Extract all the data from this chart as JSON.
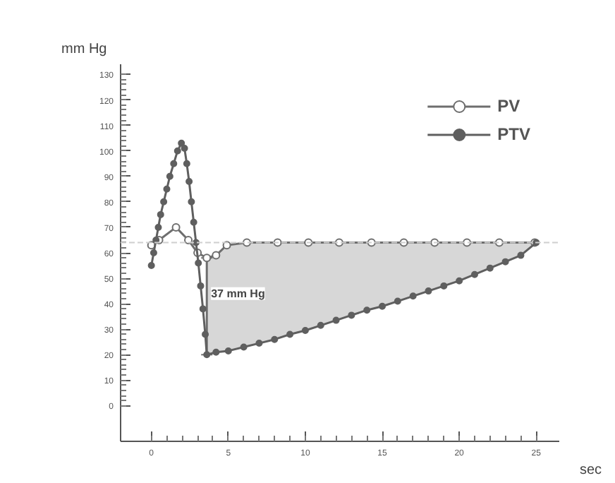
{
  "chart_data": {
    "type": "line",
    "xlabel": "sec",
    "ylabel": "mm Hg",
    "xlim": [
      -2,
      26.5
    ],
    "ylim": [
      -14,
      134
    ],
    "xticks": [
      0,
      5,
      10,
      15,
      20,
      25
    ],
    "yticks": [
      0,
      10,
      20,
      30,
      40,
      50,
      60,
      70,
      80,
      90,
      100,
      110,
      120,
      130
    ],
    "grid": false,
    "legend": "top right",
    "series": [
      {
        "name": "PV",
        "color": "#6e6e6e",
        "marker": "circle",
        "x": [
          0,
          0.5,
          1.6,
          2.4,
          3,
          3.6,
          4.2,
          4.9,
          6.2,
          8.2,
          10.2,
          12.2,
          14.3,
          16.4,
          18.4,
          20.5,
          22.6,
          24.9
        ],
        "values": [
          63,
          65,
          70,
          65,
          60,
          58,
          59,
          63,
          64,
          64,
          64,
          64,
          64,
          64,
          64,
          64,
          64,
          64
        ],
        "errors": [
          null,
          null,
          null,
          null,
          null,
          [
            20,
            58
          ],
          null,
          null,
          null,
          null,
          null,
          null,
          null,
          null,
          null,
          null,
          null,
          null
        ]
      },
      {
        "name": "PTV",
        "color": "#5f5f5f",
        "marker": "circle",
        "x": [
          0,
          0.15,
          0.3,
          0.45,
          0.6,
          0.8,
          1,
          1.2,
          1.45,
          1.7,
          1.95,
          2.15,
          2.3,
          2.45,
          2.6,
          2.75,
          2.9,
          3.05,
          3.2,
          3.35,
          3.5,
          3.6,
          4.2,
          5,
          6,
          7,
          8,
          9,
          10,
          11,
          12,
          13,
          14,
          15,
          16,
          17,
          18,
          19,
          20,
          21,
          22,
          23,
          24,
          25
        ],
        "values": [
          55,
          60,
          65,
          70,
          75,
          80,
          85,
          90,
          95,
          100,
          103,
          101,
          95,
          88,
          80,
          72,
          64,
          56,
          47,
          38,
          28,
          20,
          21,
          21.5,
          23,
          24.5,
          26,
          28,
          29.5,
          31.5,
          33.5,
          35.5,
          37.5,
          39,
          41,
          43,
          45,
          47,
          49,
          51.5,
          54,
          56.5,
          59,
          64
        ],
        "lower": [
          null,
          null,
          null,
          null,
          null,
          null,
          null,
          null,
          null,
          null,
          null,
          null,
          null,
          null,
          null,
          null,
          null,
          null,
          null,
          null,
          null,
          20,
          21,
          21.5,
          23,
          24.5,
          26,
          28,
          29.5,
          31.5,
          33.5,
          35.5,
          37.5,
          39,
          41,
          43,
          45,
          47,
          49,
          51.5,
          54,
          56.5,
          59,
          64
        ],
        "upper": [
          null,
          null,
          null,
          null,
          null,
          null,
          null,
          null,
          null,
          null,
          null,
          null,
          null,
          null,
          null,
          null,
          null,
          null,
          null,
          null,
          null,
          58,
          59,
          63,
          64,
          64,
          64,
          64,
          64,
          64,
          64,
          64,
          64,
          64,
          64,
          64,
          64,
          64,
          64,
          64,
          64,
          64,
          64,
          64
        ]
      }
    ],
    "ref_lines": [
      {
        "axis": "y",
        "value": 64,
        "color": "#cfcfcf",
        "line_style": "dashed"
      }
    ],
    "annotations": [
      {
        "text": "37 mm Hg",
        "x": 3.6,
        "y": 44
      }
    ]
  }
}
